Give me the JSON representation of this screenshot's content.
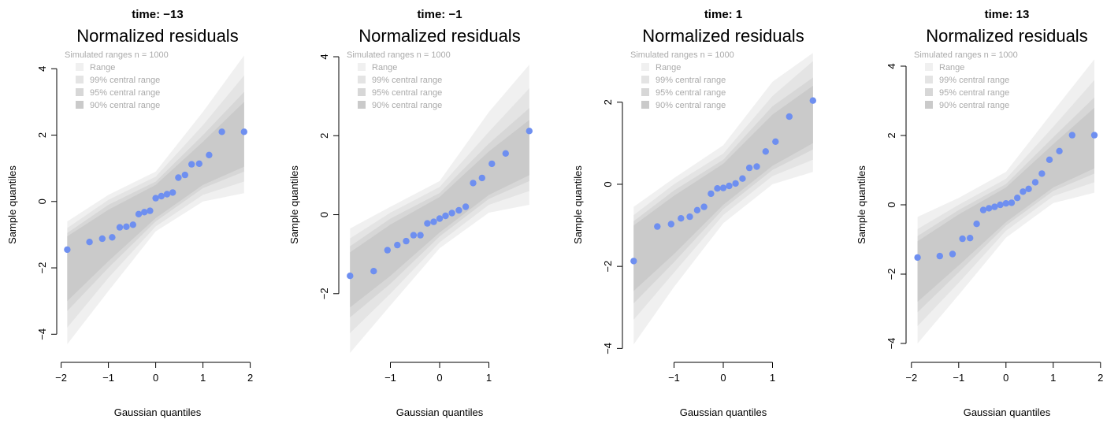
{
  "colors": {
    "point": "#6e8ff0",
    "band_range": "#f0f0f0",
    "band_99": "#e4e4e4",
    "band_95": "#d7d7d7",
    "band_90": "#cacaca",
    "legend_text": "#aaaaaa",
    "axis": "#000000"
  },
  "chart_data": [
    {
      "type": "scatter",
      "panel_title": "time: −13",
      "title": "Normalized residuals",
      "xlabel": "Gaussian quantiles",
      "ylabel": "Sample quantiles",
      "xlim": [
        -1.96,
        2.04
      ],
      "ylim": [
        -4.8,
        4.6
      ],
      "xticks": [
        -2,
        -1,
        0,
        1,
        2
      ],
      "xtick_labels": [
        "−2",
        "−1",
        "0",
        "1",
        "2"
      ],
      "yticks": [
        -4,
        -2,
        0,
        2,
        4
      ],
      "ytick_labels": [
        "−4",
        "−2",
        "0",
        "2",
        "4"
      ],
      "legend": {
        "header": "Simulated ranges n = 1000",
        "entries": [
          "Range",
          "99% central range",
          "95% central range",
          "90% central range"
        ]
      },
      "x": [
        -1.87,
        -1.4,
        -1.13,
        -0.92,
        -0.76,
        -0.62,
        -0.48,
        -0.36,
        -0.24,
        -0.12,
        0.0,
        0.12,
        0.24,
        0.36,
        0.48,
        0.62,
        0.76,
        0.92,
        1.13,
        1.4,
        1.87
      ],
      "y": [
        -1.45,
        -1.22,
        -1.12,
        -1.08,
        -0.78,
        -0.76,
        -0.7,
        -0.38,
        -0.32,
        -0.28,
        0.1,
        0.16,
        0.22,
        0.27,
        0.72,
        0.8,
        1.12,
        1.14,
        1.4,
        2.1,
        2.1
      ],
      "bands": {
        "range": {
          "x": [
            -1.87,
            -1.0,
            0.0,
            1.0,
            1.87
          ],
          "lower": [
            -4.3,
            -2.7,
            -0.9,
            0.0,
            0.25
          ],
          "upper": [
            -0.6,
            0.2,
            0.9,
            2.7,
            4.4
          ]
        },
        "central99": {
          "x": [
            -1.87,
            -1.0,
            0.0,
            1.0,
            1.87
          ],
          "lower": [
            -3.8,
            -2.3,
            -0.75,
            0.2,
            0.6
          ],
          "upper": [
            -0.8,
            0.05,
            0.75,
            2.3,
            3.8
          ]
        },
        "central95": {
          "x": [
            -1.87,
            -1.0,
            0.0,
            1.0,
            1.87
          ],
          "lower": [
            -3.3,
            -2.0,
            -0.6,
            0.4,
            0.9
          ],
          "upper": [
            -0.95,
            -0.1,
            0.6,
            2.0,
            3.3
          ]
        },
        "central90": {
          "x": [
            -1.87,
            -1.0,
            0.0,
            1.0,
            1.87
          ],
          "lower": [
            -3.0,
            -1.8,
            -0.5,
            0.5,
            1.05
          ],
          "upper": [
            -1.05,
            -0.25,
            0.5,
            1.8,
            3.0
          ]
        }
      }
    },
    {
      "type": "scatter",
      "panel_title": "time: −1",
      "title": "Normalized residuals",
      "xlabel": "Gaussian quantiles",
      "ylabel": "Sample quantiles",
      "xlim": [
        -1.92,
        1.92
      ],
      "ylim": [
        -3.7,
        4.2
      ],
      "xticks": [
        -1,
        0,
        1
      ],
      "xtick_labels": [
        "−1",
        "0",
        "1"
      ],
      "yticks": [
        -2,
        0,
        2,
        4
      ],
      "ytick_labels": [
        "−2",
        "0",
        "2",
        "4"
      ],
      "legend": {
        "header": "Simulated ranges n = 1000",
        "entries": [
          "Range",
          "99% central range",
          "95% central range",
          "90% central range"
        ]
      },
      "x": [
        -1.82,
        -1.34,
        -1.06,
        -0.86,
        -0.68,
        -0.53,
        -0.39,
        -0.25,
        -0.12,
        0.0,
        0.12,
        0.25,
        0.39,
        0.53,
        0.68,
        0.86,
        1.06,
        1.34,
        1.82
      ],
      "y": [
        -1.55,
        -1.43,
        -0.9,
        -0.77,
        -0.67,
        -0.52,
        -0.52,
        -0.22,
        -0.18,
        -0.1,
        -0.03,
        0.04,
        0.11,
        0.2,
        0.8,
        0.93,
        1.29,
        1.55,
        2.12
      ],
      "bands": {
        "range": {
          "x": [
            -1.82,
            -1.0,
            0.0,
            1.0,
            1.82
          ],
          "lower": [
            -3.5,
            -2.3,
            -0.85,
            0.05,
            0.25
          ],
          "upper": [
            -0.35,
            0.2,
            0.85,
            2.6,
            3.8
          ]
        },
        "central99": {
          "x": [
            -1.82,
            -1.0,
            0.0,
            1.0,
            1.82
          ],
          "lower": [
            -3.0,
            -2.0,
            -0.7,
            0.25,
            0.6
          ],
          "upper": [
            -0.6,
            0.05,
            0.7,
            2.1,
            3.2
          ]
        },
        "central95": {
          "x": [
            -1.82,
            -1.0,
            0.0,
            1.0,
            1.82
          ],
          "lower": [
            -2.6,
            -1.75,
            -0.55,
            0.4,
            0.85
          ],
          "upper": [
            -0.8,
            -0.1,
            0.55,
            1.8,
            2.7
          ]
        },
        "central90": {
          "x": [
            -1.82,
            -1.0,
            0.0,
            1.0,
            1.82
          ],
          "lower": [
            -2.35,
            -1.55,
            -0.45,
            0.5,
            1.0
          ],
          "upper": [
            -0.95,
            -0.25,
            0.45,
            1.6,
            2.4
          ]
        }
      }
    },
    {
      "type": "scatter",
      "panel_title": "time: 1",
      "title": "Normalized residuals",
      "xlabel": "Gaussian quantiles",
      "ylabel": "Sample quantiles",
      "xlim": [
        -1.92,
        1.92
      ],
      "ylim": [
        -4.3,
        3.3
      ],
      "xticks": [
        -1,
        0,
        1
      ],
      "xtick_labels": [
        "−1",
        "0",
        "1"
      ],
      "yticks": [
        -4,
        -2,
        0,
        2
      ],
      "ytick_labels": [
        "−4",
        "−2",
        "0",
        "2"
      ],
      "legend": {
        "header": "Simulated ranges n = 1000",
        "entries": [
          "Range",
          "99% central range",
          "95% central range",
          "90% central range"
        ]
      },
      "x": [
        -1.82,
        -1.34,
        -1.06,
        -0.86,
        -0.68,
        -0.53,
        -0.39,
        -0.25,
        -0.12,
        0.0,
        0.12,
        0.25,
        0.39,
        0.53,
        0.68,
        0.86,
        1.06,
        1.34,
        1.82
      ],
      "y": [
        -1.87,
        -1.03,
        -0.97,
        -0.83,
        -0.79,
        -0.63,
        -0.55,
        -0.23,
        -0.1,
        -0.09,
        -0.04,
        0.02,
        0.14,
        0.4,
        0.43,
        0.8,
        1.04,
        1.65,
        2.04
      ],
      "bands": {
        "range": {
          "x": [
            -1.82,
            -1.0,
            0.0,
            1.0,
            1.82
          ],
          "lower": [
            -3.9,
            -2.5,
            -0.95,
            0.0,
            0.3
          ],
          "upper": [
            -0.55,
            0.15,
            0.95,
            2.5,
            3.2
          ]
        },
        "central99": {
          "x": [
            -1.82,
            -1.0,
            0.0,
            1.0,
            1.82
          ],
          "lower": [
            -3.3,
            -2.15,
            -0.75,
            0.2,
            0.6
          ],
          "upper": [
            -0.75,
            0.0,
            0.75,
            2.15,
            3.0
          ]
        },
        "central95": {
          "x": [
            -1.82,
            -1.0,
            0.0,
            1.0,
            1.82
          ],
          "lower": [
            -2.9,
            -1.9,
            -0.6,
            0.35,
            0.85
          ],
          "upper": [
            -0.9,
            -0.15,
            0.6,
            1.9,
            2.6
          ]
        },
        "central90": {
          "x": [
            -1.82,
            -1.0,
            0.0,
            1.0,
            1.82
          ],
          "lower": [
            -2.6,
            -1.7,
            -0.5,
            0.45,
            1.0
          ],
          "upper": [
            -1.0,
            -0.28,
            0.5,
            1.7,
            2.4
          ]
        }
      }
    },
    {
      "type": "scatter",
      "panel_title": "time: 13",
      "title": "Normalized residuals",
      "xlabel": "Gaussian quantiles",
      "ylabel": "Sample quantiles",
      "xlim": [
        -1.98,
        2.02
      ],
      "ylim": [
        -4.5,
        4.5
      ],
      "xticks": [
        -2,
        -1,
        0,
        1,
        2
      ],
      "xtick_labels": [
        "−2",
        "−1",
        "0",
        "1",
        "2"
      ],
      "yticks": [
        -4,
        -2,
        0,
        2,
        4
      ],
      "ytick_labels": [
        "−4",
        "−2",
        "0",
        "2",
        "4"
      ],
      "legend": {
        "header": "Simulated ranges n = 1000",
        "entries": [
          "Range",
          "99% central range",
          "95% central range",
          "90% central range"
        ]
      },
      "x": [
        -1.87,
        -1.4,
        -1.13,
        -0.92,
        -0.76,
        -0.62,
        -0.48,
        -0.36,
        -0.24,
        -0.12,
        0.0,
        0.12,
        0.24,
        0.36,
        0.48,
        0.62,
        0.76,
        0.92,
        1.13,
        1.4,
        1.87
      ],
      "y": [
        -1.52,
        -1.48,
        -1.42,
        -0.98,
        -0.96,
        -0.55,
        -0.15,
        -0.1,
        -0.06,
        0.0,
        0.04,
        0.06,
        0.2,
        0.38,
        0.46,
        0.65,
        0.9,
        1.3,
        1.55,
        2.01,
        2.01
      ],
      "bands": {
        "range": {
          "x": [
            -1.87,
            -1.0,
            0.0,
            1.0,
            1.87
          ],
          "lower": [
            -4.0,
            -2.6,
            -0.95,
            0.05,
            0.35
          ],
          "upper": [
            -0.35,
            0.2,
            0.95,
            2.7,
            4.2
          ]
        },
        "central99": {
          "x": [
            -1.87,
            -1.0,
            0.0,
            1.0,
            1.87
          ],
          "lower": [
            -3.5,
            -2.25,
            -0.75,
            0.25,
            0.65
          ],
          "upper": [
            -0.7,
            0.0,
            0.75,
            2.25,
            3.6
          ]
        },
        "central95": {
          "x": [
            -1.87,
            -1.0,
            0.0,
            1.0,
            1.87
          ],
          "lower": [
            -3.1,
            -1.95,
            -0.6,
            0.4,
            0.9
          ],
          "upper": [
            -0.9,
            -0.15,
            0.6,
            1.95,
            3.1
          ]
        },
        "central90": {
          "x": [
            -1.87,
            -1.0,
            0.0,
            1.0,
            1.87
          ],
          "lower": [
            -2.8,
            -1.75,
            -0.5,
            0.5,
            1.05
          ],
          "upper": [
            -1.05,
            -0.28,
            0.5,
            1.75,
            2.8
          ]
        }
      }
    }
  ]
}
